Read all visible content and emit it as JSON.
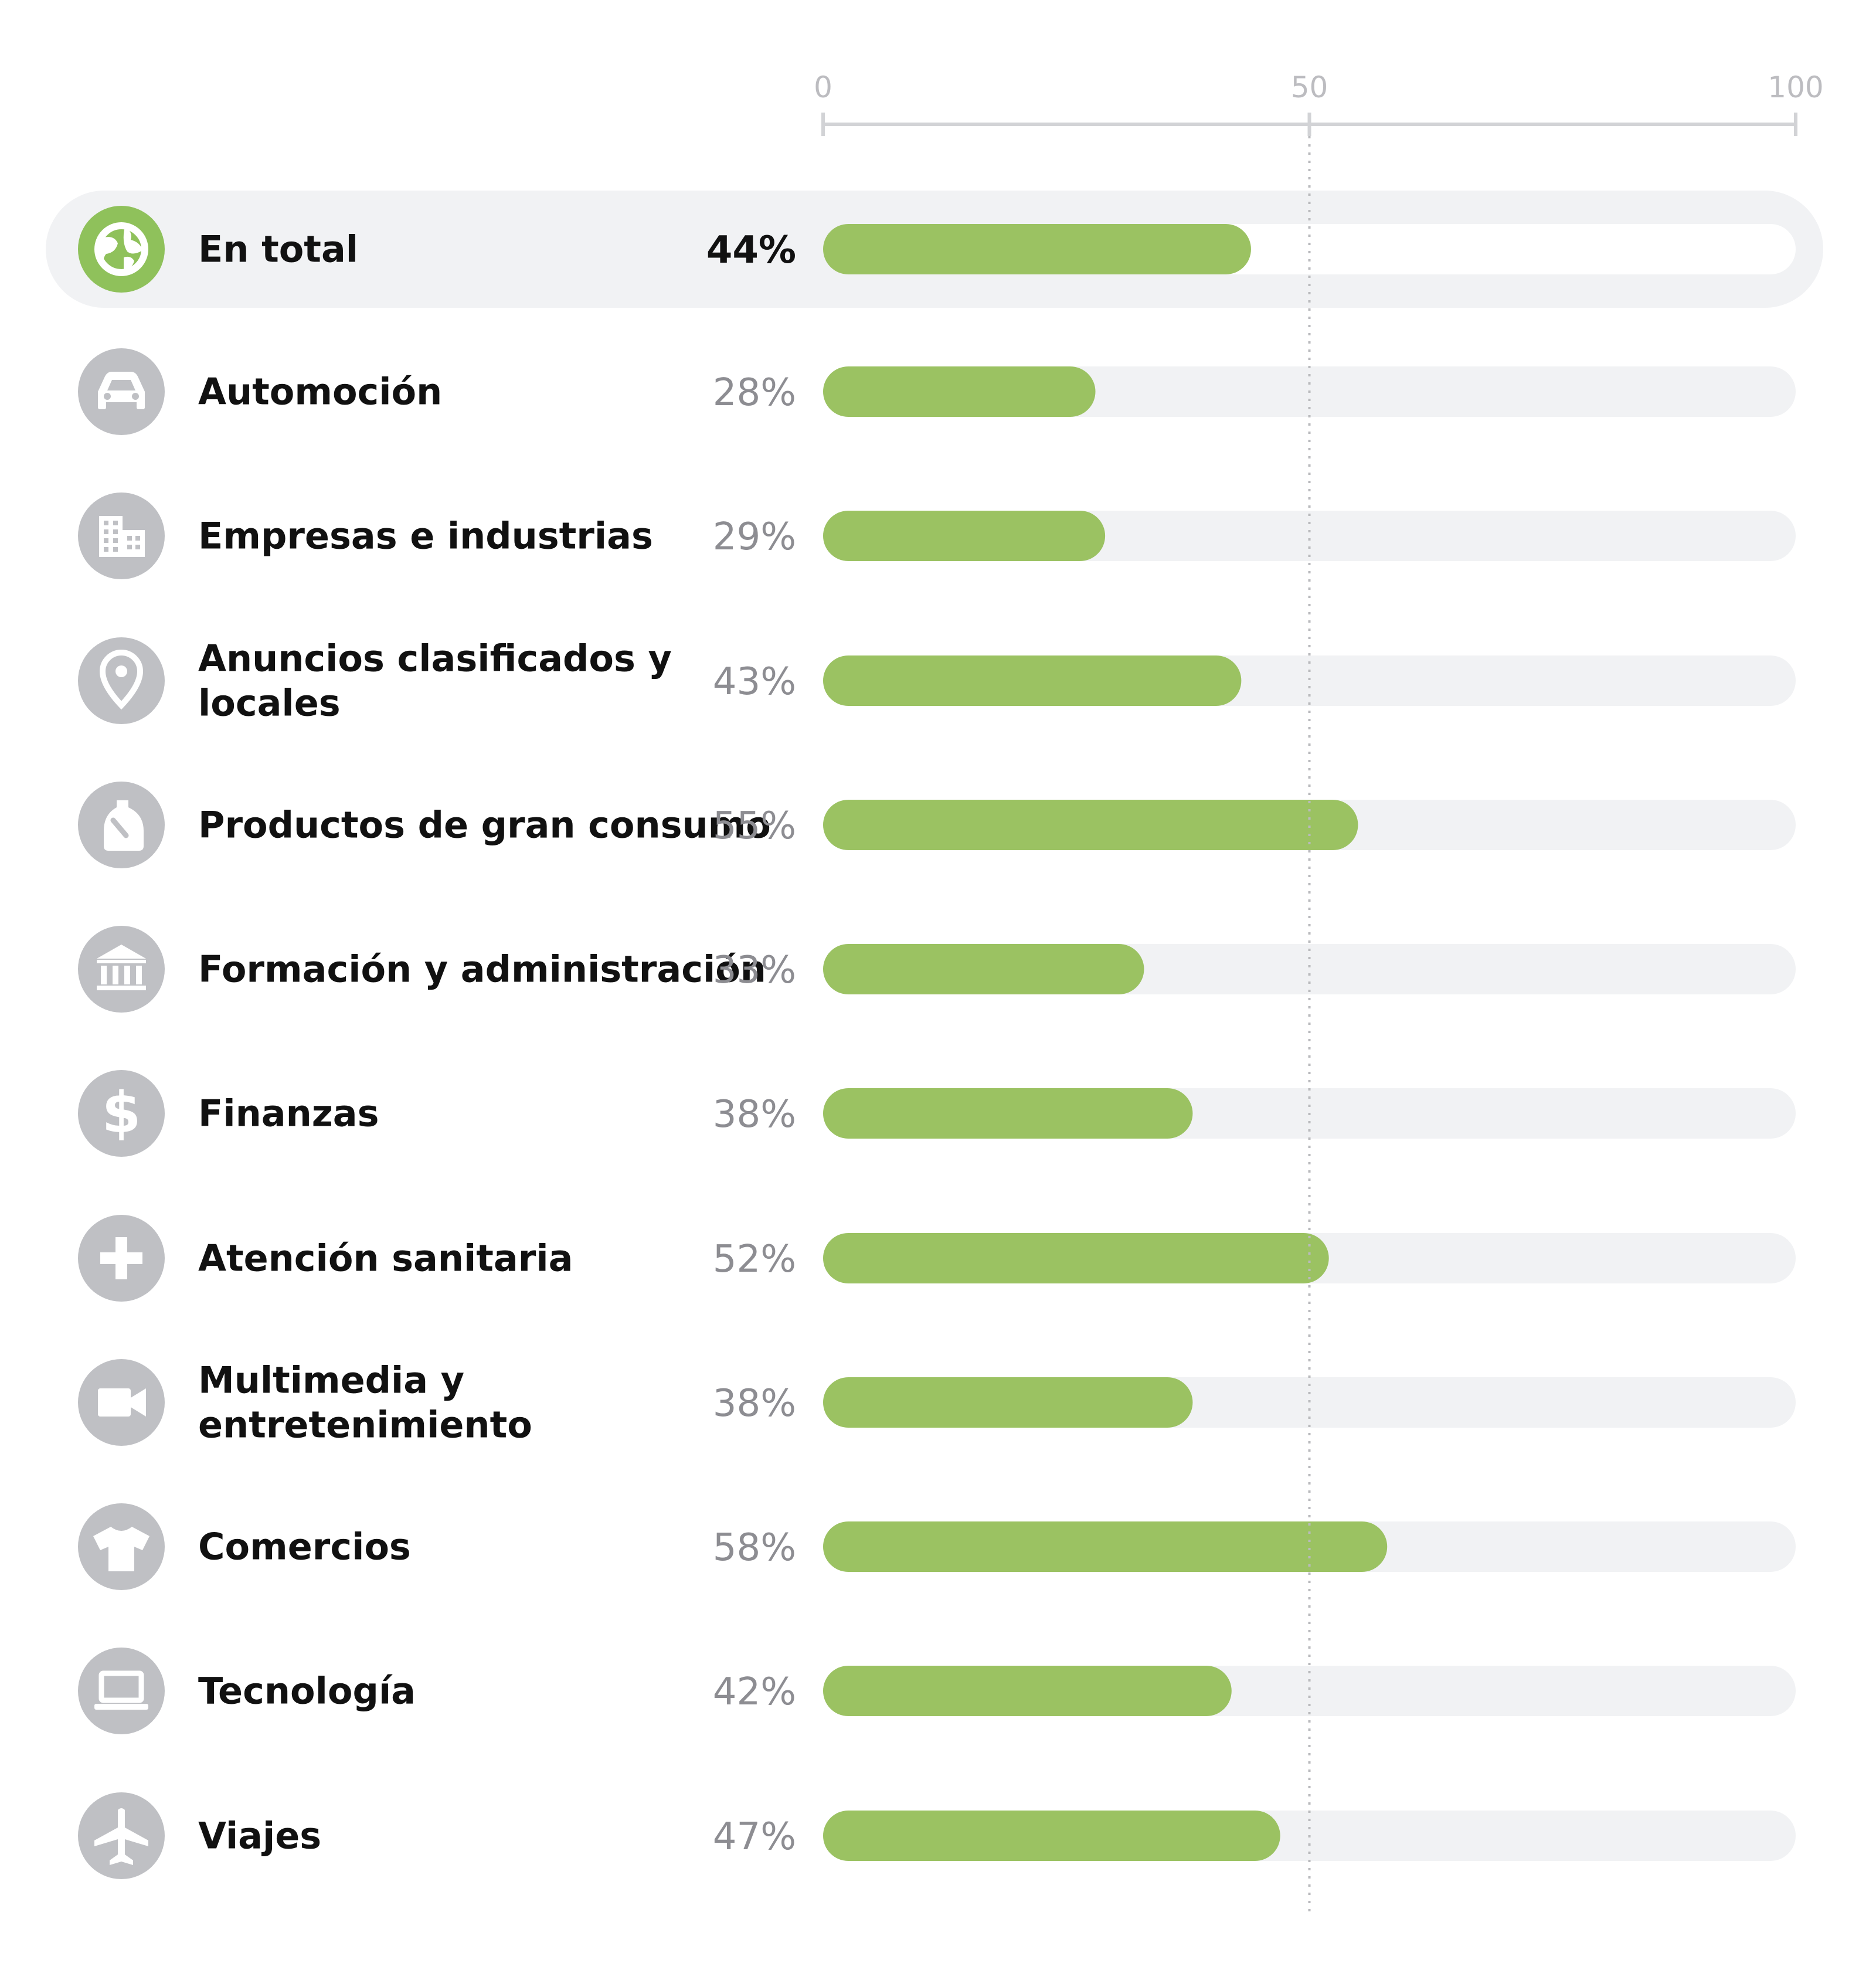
{
  "chart_data": {
    "type": "bar",
    "orientation": "horizontal",
    "xlim": [
      0,
      100
    ],
    "x_ticks": [
      0,
      50,
      100
    ],
    "reference_line": 50,
    "grid": false,
    "title": "",
    "xlabel": "",
    "ylabel": "",
    "value_suffix": "%",
    "categories": [
      {
        "label": "En total",
        "value": 44,
        "icon": "globe-icon",
        "highlight": true
      },
      {
        "label": "Automoción",
        "value": 28,
        "icon": "car-icon"
      },
      {
        "label": "Empresas e industrias",
        "value": 29,
        "icon": "building-icon"
      },
      {
        "label": "Anuncios clasificados y locales",
        "value": 43,
        "icon": "location-pin-icon"
      },
      {
        "label": "Productos de gran consumo",
        "value": 55,
        "icon": "detergent-bottle-icon"
      },
      {
        "label": "Formación y administración",
        "value": 33,
        "icon": "institution-icon"
      },
      {
        "label": "Finanzas",
        "value": 38,
        "icon": "dollar-icon"
      },
      {
        "label": "Atención sanitaria",
        "value": 52,
        "icon": "medical-cross-icon"
      },
      {
        "label": "Multimedia y entretenimiento",
        "value": 38,
        "icon": "video-camera-icon"
      },
      {
        "label": "Comercios",
        "value": 58,
        "icon": "tshirt-icon"
      },
      {
        "label": "Tecnología",
        "value": 42,
        "icon": "laptop-icon"
      },
      {
        "label": "Viajes",
        "value": 47,
        "icon": "airplane-icon"
      }
    ]
  },
  "colors": {
    "bar": "#9bc262",
    "track": "#f1f2f4",
    "highlight_band": "#f1f2f4",
    "highlight_track": "#ffffff",
    "icon_circle": "#bfc0c4",
    "icon_circle_highlight": "#8fc15b",
    "icon_glyph": "#ffffff",
    "label": "#111111",
    "value_muted": "#8d8d92",
    "value_highlight": "#111111",
    "axis": "#d2d3d6",
    "tick_text": "#bcbcc0",
    "ref_line": "#b9babd"
  }
}
